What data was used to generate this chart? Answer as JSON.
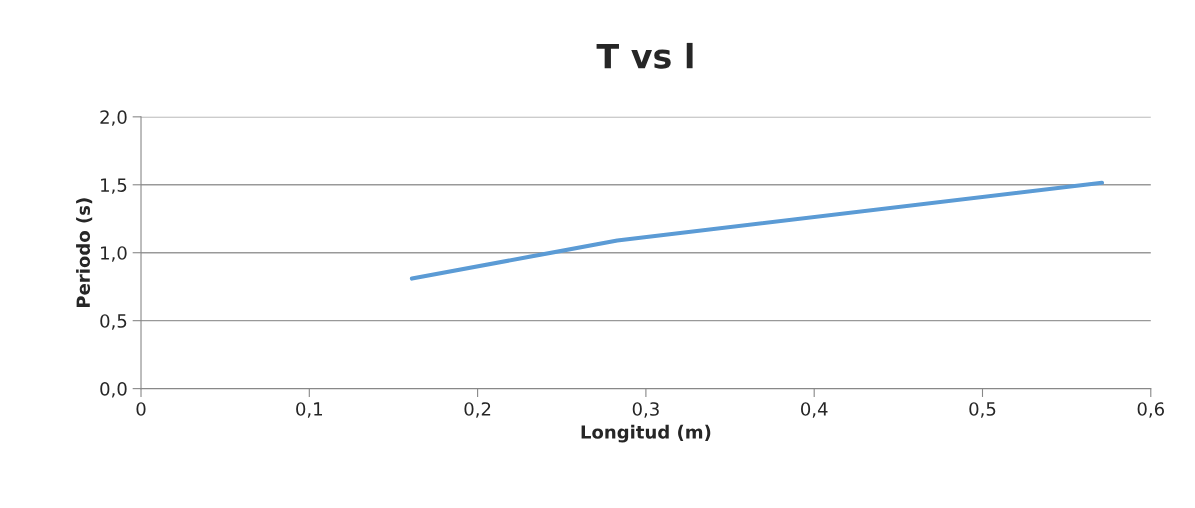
{
  "chart_data": {
    "type": "line",
    "title": "T vs l",
    "xlabel": "Longitud (m)",
    "ylabel": "Periodo (s)",
    "x": [
      0.161,
      0.283,
      0.571
    ],
    "series": [
      {
        "color": "#5b9bd5",
        "values": [
          0.81,
          1.09,
          1.515
        ]
      }
    ],
    "xlim": [
      0,
      0.6
    ],
    "ylim": [
      0,
      2.0
    ],
    "xticks": [
      0,
      {
        "value": 0.1,
        "label": "0,1"
      },
      {
        "value": 0.2,
        "label": "0,2"
      },
      {
        "value": 0.3,
        "label": "0,3"
      },
      {
        "value": 0.4,
        "label": "0,4"
      },
      {
        "value": 0.5,
        "label": "0,5"
      },
      {
        "value": 0.6,
        "label": "0,6"
      }
    ],
    "yticks": [
      {
        "value": 0.0,
        "label": "0,0"
      },
      {
        "value": 0.5,
        "label": "0,5"
      },
      {
        "value": 1.0,
        "label": "1,0"
      },
      {
        "value": 1.5,
        "label": "1,5"
      },
      {
        "value": 2.0,
        "label": "2,0"
      }
    ],
    "grid": "y",
    "marker": "none",
    "line_style": "solid"
  }
}
